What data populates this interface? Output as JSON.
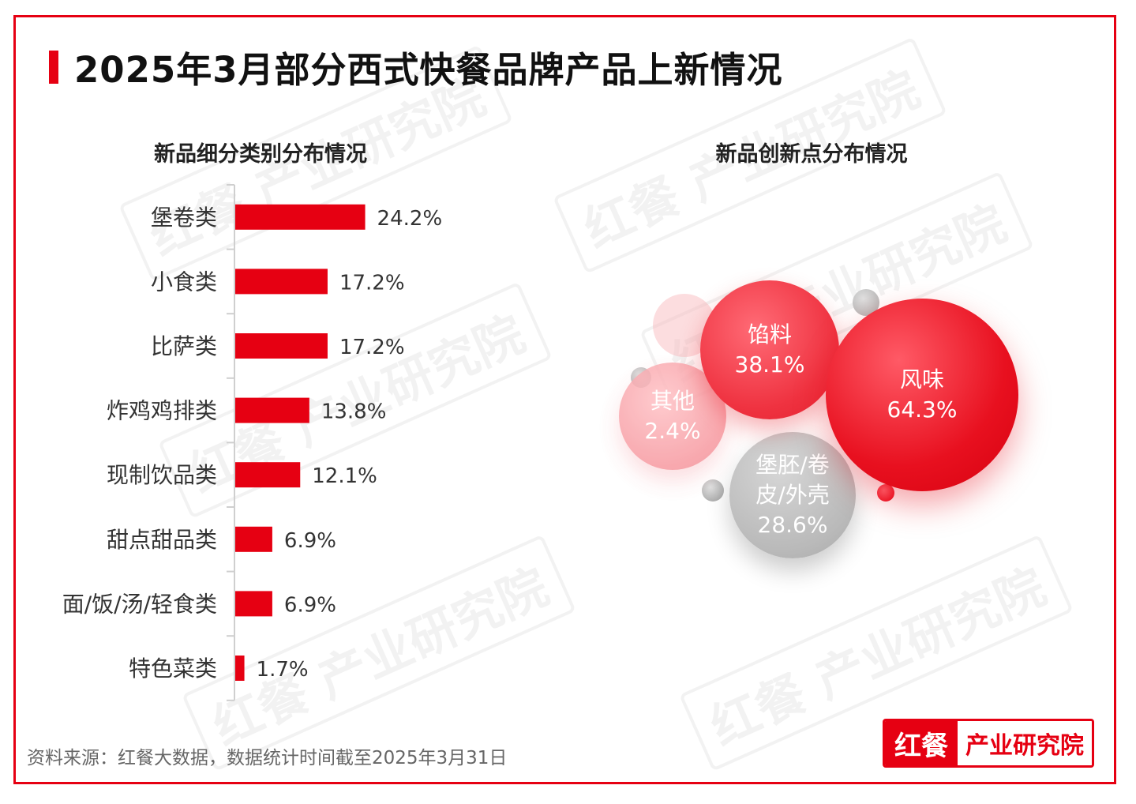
{
  "title": "2025年3月部分西式快餐品牌产品上新情况",
  "watermark_text": "红餐 产业研究院",
  "source": "资料来源：红餐大数据，数据统计时间截至2025年3月31日",
  "logo": {
    "left": "红餐",
    "right": "产业研究院"
  },
  "colors": {
    "accent": "#e60012",
    "gray": "#bdbdbd"
  },
  "chart_data": [
    {
      "type": "bar",
      "orientation": "horizontal",
      "title": "新品细分类别分布情况",
      "categories": [
        "堡卷类",
        "小食类",
        "比萨类",
        "炸鸡鸡排类",
        "现制饮品类",
        "甜点甜品类",
        "面/饭/汤/轻食类",
        "特色菜类"
      ],
      "values": [
        24.2,
        17.2,
        17.2,
        13.8,
        12.1,
        6.9,
        6.9,
        1.7
      ],
      "value_labels": [
        "24.2%",
        "17.2%",
        "17.2%",
        "13.8%",
        "12.1%",
        "6.9%",
        "6.9%",
        "1.7%"
      ],
      "unit": "%",
      "color": "#e60012"
    },
    {
      "type": "bubble",
      "title": "新品创新点分布情况",
      "items": [
        {
          "name": "风味",
          "value": 64.3,
          "label": "64.3%"
        },
        {
          "name": "馅料",
          "value": 38.1,
          "label": "38.1%"
        },
        {
          "name": "堡胚/卷皮/外壳",
          "name_lines": [
            "堡胚/卷",
            "皮/外壳"
          ],
          "value": 28.6,
          "label": "28.6%"
        },
        {
          "name": "其他",
          "value": 2.4,
          "label": "2.4%"
        }
      ]
    }
  ]
}
